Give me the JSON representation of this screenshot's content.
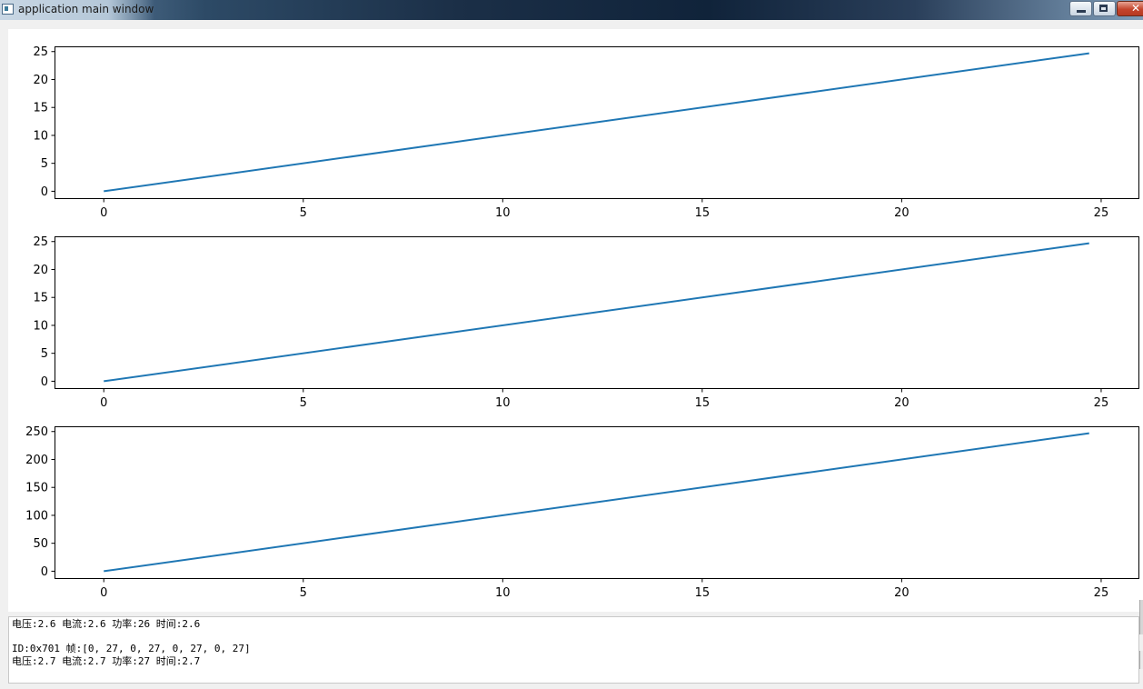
{
  "window": {
    "title": "application main window",
    "buttons": {
      "minimize": "minimize",
      "maximize": "maximize",
      "close": "close"
    }
  },
  "colors": {
    "line": "#1f77b4",
    "axes": "#000000",
    "background": "#ffffff"
  },
  "chart_data": [
    {
      "type": "line",
      "x": [
        0,
        24.7
      ],
      "y": [
        0,
        24.7
      ],
      "xlim": [
        -1.235,
        25.935
      ],
      "ylim": [
        -1.235,
        25.935
      ],
      "xticks": [
        0,
        5,
        10,
        15,
        20,
        25
      ],
      "yticks": [
        0,
        5,
        10,
        15,
        20,
        25
      ],
      "grid": false
    },
    {
      "type": "line",
      "x": [
        0,
        24.7
      ],
      "y": [
        0,
        24.7
      ],
      "xlim": [
        -1.235,
        25.935
      ],
      "ylim": [
        -1.235,
        25.935
      ],
      "xticks": [
        0,
        5,
        10,
        15,
        20,
        25
      ],
      "yticks": [
        0,
        5,
        10,
        15,
        20,
        25
      ],
      "grid": false
    },
    {
      "type": "line",
      "x": [
        0,
        24.7
      ],
      "y": [
        0,
        247
      ],
      "xlim": [
        -1.235,
        25.935
      ],
      "ylim": [
        -12.35,
        259.35
      ],
      "xticks": [
        0,
        5,
        10,
        15,
        20,
        25
      ],
      "yticks": [
        0,
        50,
        100,
        150,
        200,
        250
      ],
      "grid": false
    }
  ],
  "log": {
    "lines": [
      "电压:2.6 电流:2.6 功率:26 时间:2.6",
      "",
      "ID:0x701 帧:[0, 27, 0, 27, 0, 27, 0, 27]",
      "电压:2.7 电流:2.7 功率:27 时间:2.7"
    ]
  }
}
